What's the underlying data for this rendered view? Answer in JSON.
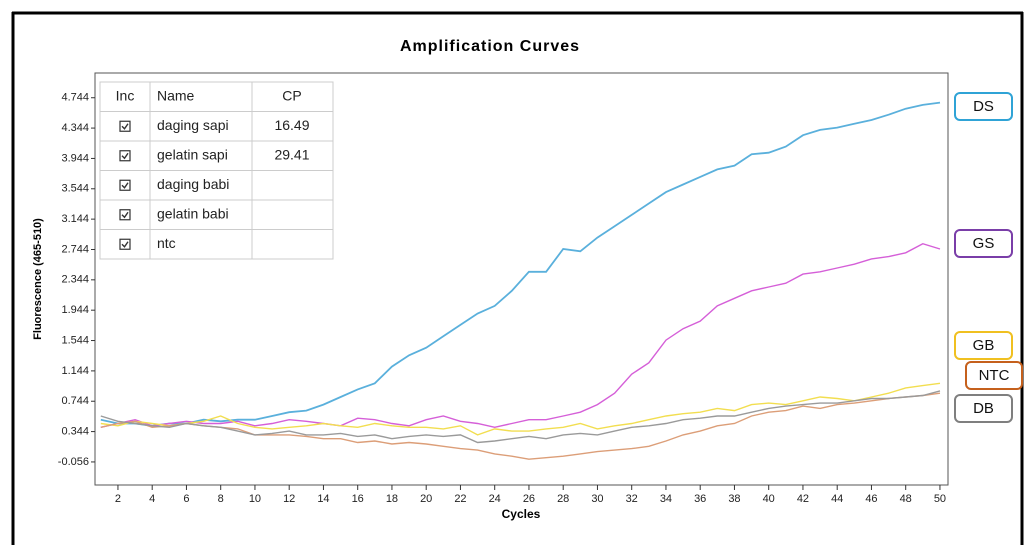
{
  "chart_data": {
    "type": "line",
    "title": "Amplification Curves",
    "x_label": "Cycles",
    "y_label": "Fluorescence (465-510)",
    "x": [
      1,
      2,
      3,
      4,
      5,
      6,
      7,
      8,
      9,
      10,
      11,
      12,
      13,
      14,
      15,
      16,
      17,
      18,
      19,
      20,
      21,
      22,
      23,
      24,
      25,
      26,
      27,
      28,
      29,
      30,
      31,
      32,
      33,
      34,
      35,
      36,
      37,
      38,
      39,
      40,
      41,
      42,
      43,
      44,
      45,
      46,
      47,
      48,
      49,
      50
    ],
    "xlim": [
      0.66,
      50.47
    ],
    "ylim": [
      -0.36,
      5.07
    ],
    "xticks": [
      2,
      4,
      6,
      8,
      10,
      12,
      14,
      16,
      18,
      20,
      22,
      24,
      26,
      28,
      30,
      32,
      34,
      36,
      38,
      40,
      42,
      44,
      46,
      48,
      50
    ],
    "yticks": [
      4.744,
      4.344,
      3.944,
      3.544,
      3.144,
      2.744,
      2.344,
      1.944,
      1.544,
      1.144,
      0.744,
      0.344,
      -0.056
    ],
    "series": [
      {
        "name": "DS",
        "color": "#5ab0dc",
        "values": [
          0.5,
          0.45,
          0.45,
          0.42,
          0.45,
          0.45,
          0.5,
          0.48,
          0.5,
          0.5,
          0.55,
          0.6,
          0.62,
          0.7,
          0.8,
          0.9,
          0.98,
          1.2,
          1.35,
          1.45,
          1.6,
          1.75,
          1.9,
          2.0,
          2.2,
          2.45,
          2.45,
          2.75,
          2.72,
          2.9,
          3.05,
          3.2,
          3.35,
          3.5,
          3.6,
          3.7,
          3.8,
          3.85,
          4.0,
          4.02,
          4.1,
          4.25,
          4.32,
          4.35,
          4.4,
          4.45,
          4.52,
          4.6,
          4.65,
          4.68
        ]
      },
      {
        "name": "GS",
        "color": "#d55fd8",
        "values": [
          0.4,
          0.45,
          0.5,
          0.42,
          0.45,
          0.48,
          0.45,
          0.45,
          0.48,
          0.42,
          0.45,
          0.5,
          0.48,
          0.45,
          0.42,
          0.52,
          0.5,
          0.45,
          0.42,
          0.5,
          0.55,
          0.48,
          0.45,
          0.4,
          0.45,
          0.5,
          0.5,
          0.55,
          0.6,
          0.7,
          0.85,
          1.1,
          1.25,
          1.55,
          1.7,
          1.8,
          2.0,
          2.1,
          2.2,
          2.25,
          2.3,
          2.42,
          2.45,
          2.5,
          2.55,
          2.62,
          2.65,
          2.7,
          2.82,
          2.75
        ]
      },
      {
        "name": "GB",
        "color": "#f2de50",
        "values": [
          0.45,
          0.42,
          0.48,
          0.45,
          0.42,
          0.45,
          0.48,
          0.55,
          0.45,
          0.4,
          0.38,
          0.4,
          0.42,
          0.45,
          0.42,
          0.4,
          0.45,
          0.42,
          0.4,
          0.4,
          0.38,
          0.42,
          0.3,
          0.38,
          0.35,
          0.35,
          0.38,
          0.4,
          0.45,
          0.38,
          0.42,
          0.45,
          0.5,
          0.55,
          0.58,
          0.6,
          0.65,
          0.62,
          0.7,
          0.72,
          0.7,
          0.75,
          0.8,
          0.78,
          0.75,
          0.8,
          0.85,
          0.92,
          0.95,
          0.98
        ]
      },
      {
        "name": "NTC",
        "color": "#dc9e78",
        "values": [
          0.4,
          0.45,
          0.48,
          0.4,
          0.42,
          0.45,
          0.42,
          0.4,
          0.38,
          0.3,
          0.3,
          0.3,
          0.28,
          0.25,
          0.25,
          0.2,
          0.22,
          0.18,
          0.2,
          0.18,
          0.15,
          0.12,
          0.1,
          0.05,
          0.02,
          -0.02,
          0.0,
          0.02,
          0.05,
          0.08,
          0.1,
          0.12,
          0.15,
          0.22,
          0.3,
          0.35,
          0.42,
          0.45,
          0.55,
          0.6,
          0.62,
          0.68,
          0.65,
          0.7,
          0.72,
          0.75,
          0.78,
          0.8,
          0.82,
          0.85
        ]
      },
      {
        "name": "DB",
        "color": "#9a9a9a",
        "values": [
          0.55,
          0.48,
          0.45,
          0.42,
          0.4,
          0.45,
          0.42,
          0.4,
          0.35,
          0.3,
          0.32,
          0.35,
          0.3,
          0.3,
          0.32,
          0.28,
          0.3,
          0.25,
          0.28,
          0.3,
          0.28,
          0.3,
          0.2,
          0.22,
          0.25,
          0.28,
          0.25,
          0.3,
          0.32,
          0.3,
          0.35,
          0.4,
          0.42,
          0.45,
          0.5,
          0.52,
          0.55,
          0.55,
          0.6,
          0.65,
          0.68,
          0.7,
          0.72,
          0.72,
          0.75,
          0.78,
          0.78,
          0.8,
          0.82,
          0.88
        ]
      }
    ],
    "table": {
      "columns": [
        "Inc",
        "Name",
        "CP"
      ],
      "rows": [
        {
          "name": "daging sapi",
          "cp": 16.49
        },
        {
          "name": "gelatin sapi",
          "cp": 29.41
        },
        {
          "name": "daging babi"
        },
        {
          "name": "gelatin babi"
        },
        {
          "name": "ntc"
        }
      ]
    }
  }
}
